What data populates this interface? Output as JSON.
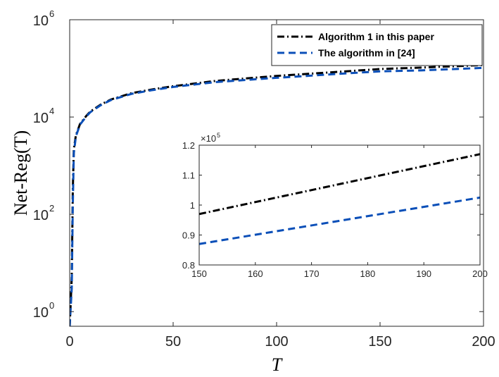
{
  "chart_data": [
    {
      "type": "line",
      "panel": "main",
      "xlabel": "T",
      "ylabel": "Net-Reg(T)",
      "xlim": [
        0,
        200
      ],
      "ylim": [
        0.5,
        1000000
      ],
      "yscale": "log",
      "x_ticks": [
        "0",
        "50",
        "100",
        "150",
        "200"
      ],
      "y_ticks": [
        {
          "base": "10",
          "exp": "0",
          "value": 1
        },
        {
          "base": "10",
          "exp": "2",
          "value": 100
        },
        {
          "base": "10",
          "exp": "4",
          "value": 10000
        },
        {
          "base": "10",
          "exp": "6",
          "value": 1000000
        }
      ],
      "legend_position": "top-right",
      "grid": false,
      "series": [
        {
          "name": "Algorithm 1 in this paper",
          "color": "#000000",
          "style": "dash-dot",
          "x": [
            0,
            0.5,
            1,
            1.5,
            2,
            3,
            5,
            8,
            10,
            15,
            20,
            30,
            40,
            50,
            70,
            100,
            130,
            150,
            170,
            200
          ],
          "y": [
            0.5,
            1.5,
            5,
            300,
            2200,
            4200,
            7200,
            10500,
            13000,
            18000,
            23000,
            31000,
            37000,
            43000,
            55000,
            70000,
            85000,
            97000,
            104000,
            117000
          ]
        },
        {
          "name": "The algorithm in [24]",
          "color": "#0b4fb8",
          "style": "dashed",
          "x": [
            0,
            0.5,
            1,
            1.5,
            2,
            3,
            5,
            8,
            10,
            15,
            20,
            30,
            40,
            50,
            70,
            100,
            130,
            150,
            170,
            200
          ],
          "y": [
            0.5,
            1.2,
            3,
            150,
            1800,
            4000,
            7000,
            10200,
            12600,
            17500,
            22400,
            30000,
            35800,
            41500,
            52000,
            64000,
            77000,
            87000,
            91000,
            102500
          ]
        }
      ]
    },
    {
      "type": "line",
      "panel": "inset",
      "xlim": [
        150,
        200
      ],
      "ylim": [
        0.8,
        1.2
      ],
      "x_ticks": [
        "150",
        "160",
        "170",
        "180",
        "190",
        "200"
      ],
      "y_ticks": [
        "0.8",
        "0.9",
        "1",
        "1.1",
        "1.2"
      ],
      "y_multiplier": {
        "base": "×10",
        "exp": "5"
      },
      "grid": false,
      "series": [
        {
          "name": "Algorithm 1 in this paper",
          "color": "#000000",
          "style": "dash-dot",
          "x": [
            150,
            200
          ],
          "y": [
            0.97,
            1.17
          ]
        },
        {
          "name": "The algorithm in [24]",
          "color": "#0b4fb8",
          "style": "dashed",
          "x": [
            150,
            200
          ],
          "y": [
            0.87,
            1.025
          ]
        }
      ]
    }
  ]
}
